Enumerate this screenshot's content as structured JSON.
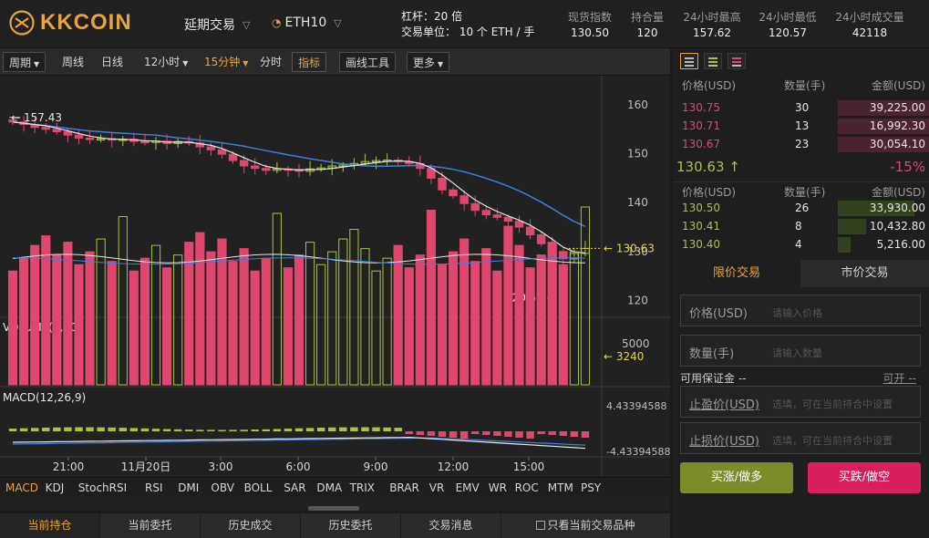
{
  "header": {
    "brand": "KKCOIN",
    "menu_label": "延期交易",
    "symbol": "ETH10",
    "leverage": "杠杆：20 倍",
    "unit": "交易单位： 10 个 ETH / 手",
    "stats": [
      {
        "label": "现货指数",
        "value": "130.50"
      },
      {
        "label": "持合量",
        "value": "120"
      },
      {
        "label": "24小时最高",
        "value": "157.62"
      },
      {
        "label": "24小时最低",
        "value": "120.57"
      },
      {
        "label": "24小时成交量",
        "value": "42118"
      }
    ]
  },
  "toolbar": {
    "period": "周期",
    "weekly": "周线",
    "daily": "日线",
    "h12": "12小时",
    "m15": "15分钟",
    "minute": "分时",
    "indicator": "指标",
    "draw": "画线工具",
    "more": "更多"
  },
  "chart_data": {
    "type": "candlestick",
    "price_axis_ticks": [
      "160",
      "150",
      "140",
      "130",
      "120"
    ],
    "max_label": "157.43",
    "min_label": "120.57",
    "last_price_label": "130.63",
    "volume_title": "VOLUME(5,10)",
    "volume_tick": "5000",
    "volume_last_label": "3240",
    "macd_title": "MACD(12,26,9)",
    "macd_top": "4.43394588",
    "macd_bottom": "-4.43394588",
    "time_ticks": [
      "21:00",
      "11月20日",
      "3:00",
      "6:00",
      "9:00",
      "12:00",
      "15:00"
    ],
    "close_path": [
      156.5,
      156.0,
      155.4,
      155.0,
      154.5,
      153.8,
      153.2,
      152.9,
      153.1,
      152.8,
      153.0,
      152.5,
      152.3,
      152.6,
      152.1,
      152.5,
      152.2,
      151.4,
      150.8,
      149.9,
      148.6,
      147.5,
      147.0,
      146.6,
      146.9,
      146.8,
      146.4,
      146.9,
      147.1,
      147.5,
      147.7,
      148.0,
      148.4,
      148.6,
      148.7,
      148.4,
      148.0,
      147.0,
      145.0,
      142.6,
      141.4,
      139.8,
      138.4,
      137.5,
      137.0,
      136.2,
      135.0,
      133.4,
      131.6,
      130.0,
      128.5,
      129.6,
      130.63
    ],
    "currency": "USD"
  },
  "indicators": [
    "MACD",
    "KDJ",
    "StochRSI",
    "RSI",
    "DMI",
    "OBV",
    "BOLL",
    "SAR",
    "DMA",
    "TRIX",
    "BRAR",
    "VR",
    "EMV",
    "WR",
    "ROC",
    "MTM",
    "PSY"
  ],
  "bottom_tabs": [
    "当前持仓",
    "当前委托",
    "历史成交",
    "历史委托",
    "交易消息",
    "只看当前交易品种"
  ],
  "book": {
    "headers": {
      "price": "价格(USD)",
      "qty": "数量(手)",
      "amount": "金额(USD)"
    },
    "asks": [
      {
        "price": "130.75",
        "qty": "30",
        "amount": "39,225.00",
        "depth": 0.36
      },
      {
        "price": "130.71",
        "qty": "13",
        "amount": "16,992.30",
        "depth": 0.36
      },
      {
        "price": "130.67",
        "qty": "23",
        "amount": "30,054.10",
        "depth": 0.36
      }
    ],
    "last_price": "130.63 ↑",
    "change": "-15%",
    "bids": [
      {
        "price": "130.50",
        "qty": "26",
        "amount": "33,930.00",
        "depth": 0.3
      },
      {
        "price": "130.41",
        "qty": "8",
        "amount": "10,432.80",
        "depth": 0.11
      },
      {
        "price": "130.40",
        "qty": "4",
        "amount": "5,216.00",
        "depth": 0.05
      }
    ]
  },
  "form": {
    "tab_limit": "限价交易",
    "tab_market": "市价交易",
    "price_label": "价格(USD)",
    "price_placeholder": "请输入价格",
    "qty_label": "数量(手)",
    "qty_placeholder": "请输入数量",
    "margin_label": "可用保证金 --",
    "open_label": "可开 --",
    "tp_label": "止盈价(USD)",
    "sl_label": "止损价(USD)",
    "optional_hint": "选填，可在当前持合中设置",
    "buy_label": "买涨/做多",
    "sell_label": "买跌/做空"
  },
  "colors": {
    "up": "#a9c23f",
    "down": "#e0476e",
    "accent": "#e8a33c",
    "ma_short": "#e6e6e6",
    "ma_long": "#3f7de0"
  }
}
